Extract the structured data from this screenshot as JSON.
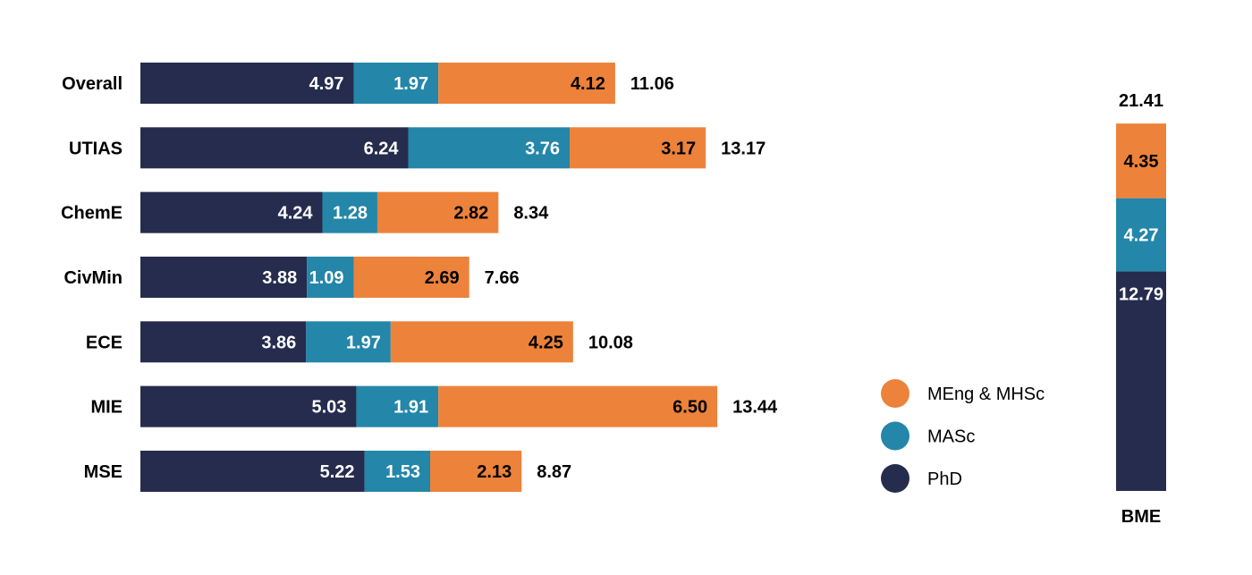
{
  "colors": {
    "PhD": "#252c4e",
    "MASc": "#2486a8",
    "MEng & MHSc": "#ed823b"
  },
  "chart_data": [
    {
      "type": "bar",
      "orientation": "horizontal",
      "stacked": true,
      "categories": [
        "Overall",
        "UTIAS",
        "ChemE",
        "CivMin",
        "ECE",
        "MIE",
        "MSE"
      ],
      "series": [
        {
          "name": "PhD",
          "values": [
            4.97,
            6.24,
            4.24,
            3.88,
            3.86,
            5.03,
            5.22
          ]
        },
        {
          "name": "MASc",
          "values": [
            1.97,
            3.76,
            1.28,
            1.09,
            1.97,
            1.91,
            1.53
          ]
        },
        {
          "name": "MEng & MHSc",
          "values": [
            4.12,
            3.17,
            2.82,
            2.69,
            4.25,
            6.5,
            2.13
          ]
        }
      ],
      "totals": [
        "11.06",
        "13.17",
        "8.34",
        "7.66",
        "10.08",
        "13.44",
        "8.87"
      ],
      "labels": {
        "PhD": [
          "4.97",
          "6.24",
          "4.24",
          "3.88",
          "3.86",
          "5.03",
          "5.22"
        ],
        "MASc": [
          "1.97",
          "3.76",
          "1.28",
          "1.09",
          "1.97",
          "1.91",
          "1.53"
        ],
        "MEng & MHSc": [
          "4.12",
          "3.17",
          "2.82",
          "2.69",
          "4.25",
          "6.50",
          "2.13"
        ]
      },
      "legend": [
        "MEng & MHSc",
        "MASc",
        "PhD"
      ],
      "legend_position": "right",
      "grid": false
    },
    {
      "type": "bar",
      "orientation": "vertical",
      "stacked": true,
      "categories": [
        "BME"
      ],
      "series": [
        {
          "name": "PhD",
          "values": [
            12.79
          ]
        },
        {
          "name": "MASc",
          "values": [
            4.27
          ]
        },
        {
          "name": "MEng & MHSc",
          "values": [
            4.35
          ]
        }
      ],
      "totals": [
        "21.41"
      ],
      "labels": {
        "PhD": [
          "12.79"
        ],
        "MASc": [
          "4.27"
        ],
        "MEng & MHSc": [
          "4.35"
        ]
      },
      "grid": false
    }
  ]
}
